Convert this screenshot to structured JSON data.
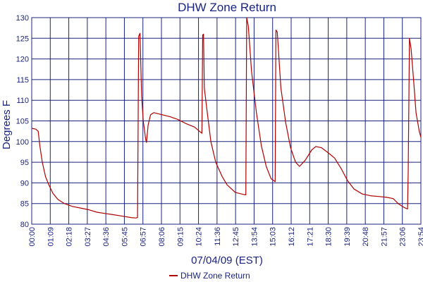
{
  "chart_data": {
    "type": "line",
    "title": "DHW Zone Return",
    "xlabel": "07/04/09 (EST)",
    "ylabel": "Degrees F",
    "x_tick_labels": [
      "00:00",
      "01:09",
      "02:18",
      "03:27",
      "04:36",
      "05:45",
      "06:57",
      "08:06",
      "09:15",
      "10:24",
      "11:36",
      "12:45",
      "13:54",
      "15:03",
      "16:12",
      "17:21",
      "18:30",
      "19:39",
      "20:48",
      "21:57",
      "23:06",
      "23:54"
    ],
    "ylim": [
      80,
      130
    ],
    "y_ticks": [
      80,
      85,
      90,
      95,
      100,
      105,
      110,
      115,
      120,
      125,
      130
    ],
    "grid": true,
    "legend_position": "bottom-center",
    "colors": {
      "series": "#b00000",
      "grid": "#1a237e",
      "text": "#1a237e"
    },
    "x_unit": "hours since 00:00",
    "series": [
      {
        "name": "DHW Zone Return",
        "points": [
          [
            0.0,
            103.2
          ],
          [
            0.25,
            103.0
          ],
          [
            0.4,
            102.5
          ],
          [
            0.5,
            99.0
          ],
          [
            0.65,
            95.0
          ],
          [
            0.85,
            91.5
          ],
          [
            1.05,
            89.5
          ],
          [
            1.3,
            87.5
          ],
          [
            1.6,
            86.0
          ],
          [
            2.0,
            85.0
          ],
          [
            2.5,
            84.3
          ],
          [
            3.0,
            83.9
          ],
          [
            3.5,
            83.5
          ],
          [
            4.0,
            82.9
          ],
          [
            4.5,
            82.6
          ],
          [
            5.0,
            82.3
          ],
          [
            5.5,
            82.0
          ],
          [
            6.1,
            81.6
          ],
          [
            6.4,
            81.5
          ],
          [
            6.5,
            81.6
          ],
          [
            6.57,
            125.5
          ],
          [
            6.65,
            126.2
          ],
          [
            6.75,
            111.0
          ],
          [
            6.85,
            105.0
          ],
          [
            7.0,
            100.5
          ],
          [
            7.05,
            99.8
          ],
          [
            7.15,
            104.0
          ],
          [
            7.3,
            106.5
          ],
          [
            7.5,
            107.0
          ],
          [
            8.0,
            106.5
          ],
          [
            8.5,
            106.0
          ],
          [
            9.0,
            105.3
          ],
          [
            9.5,
            104.3
          ],
          [
            10.0,
            103.5
          ],
          [
            10.3,
            102.5
          ],
          [
            10.45,
            102.0
          ],
          [
            10.5,
            125.8
          ],
          [
            10.55,
            126.0
          ],
          [
            10.6,
            113.0
          ],
          [
            10.75,
            108.0
          ],
          [
            11.0,
            100.0
          ],
          [
            11.3,
            95.0
          ],
          [
            11.7,
            91.5
          ],
          [
            12.0,
            89.5
          ],
          [
            12.5,
            87.7
          ],
          [
            13.0,
            87.2
          ],
          [
            13.15,
            87.1
          ],
          [
            13.2,
            130.0
          ],
          [
            13.3,
            128.0
          ],
          [
            13.5,
            117.0
          ],
          [
            13.8,
            107.0
          ],
          [
            14.1,
            99.0
          ],
          [
            14.4,
            94.0
          ],
          [
            14.7,
            91.0
          ],
          [
            14.95,
            90.3
          ],
          [
            15.0,
            127.0
          ],
          [
            15.08,
            126.5
          ],
          [
            15.3,
            113.0
          ],
          [
            15.6,
            104.5
          ],
          [
            15.9,
            98.5
          ],
          [
            16.2,
            95.0
          ],
          [
            16.45,
            94.0
          ],
          [
            16.8,
            95.5
          ],
          [
            17.2,
            98.0
          ],
          [
            17.45,
            98.8
          ],
          [
            17.8,
            98.5
          ],
          [
            18.2,
            97.3
          ],
          [
            18.6,
            96.0
          ],
          [
            19.0,
            93.5
          ],
          [
            19.4,
            90.5
          ],
          [
            19.8,
            88.5
          ],
          [
            20.3,
            87.3
          ],
          [
            20.8,
            86.9
          ],
          [
            21.3,
            86.7
          ],
          [
            21.8,
            86.5
          ],
          [
            22.2,
            86.2
          ],
          [
            22.5,
            85.0
          ],
          [
            22.8,
            84.2
          ],
          [
            23.0,
            83.8
          ],
          [
            23.08,
            83.7
          ],
          [
            23.12,
            92.5
          ],
          [
            23.2,
            125.0
          ],
          [
            23.3,
            122.5
          ],
          [
            23.45,
            115.0
          ],
          [
            23.6,
            107.0
          ],
          [
            23.8,
            102.5
          ],
          [
            23.9,
            101.0
          ]
        ]
      }
    ]
  }
}
